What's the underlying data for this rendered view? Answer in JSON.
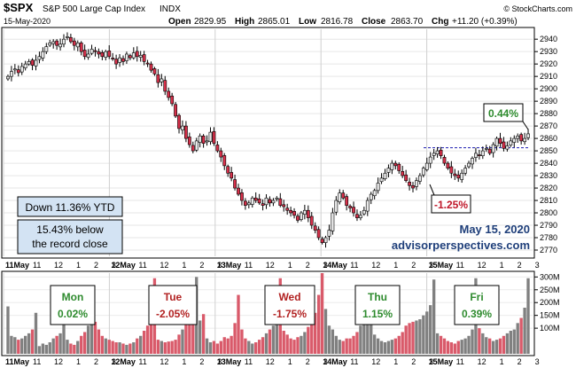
{
  "header": {
    "symbol": "$SPX",
    "name": "S&P 500 Large Cap Index",
    "exchange": "INDX",
    "date": "15-May-2020",
    "open_label": "Open",
    "open": "2829.95",
    "high_label": "High",
    "high": "2865.01",
    "low_label": "Low",
    "low": "2816.78",
    "close_label": "Close",
    "close": "2863.70",
    "chg_label": "Chg",
    "chg": "+11.20 (+0.39%)",
    "credit": "© StockCharts.com"
  },
  "annotations": {
    "ytd": "Down 11.36% YTD",
    "below_line1": "15.43% below",
    "below_line2": "the record close",
    "date_note": "May 15, 2020",
    "site": "advisorperspectives.com",
    "pct_up": "0.44%",
    "pct_down": "-1.25%"
  },
  "days": [
    {
      "name": "Mon",
      "value": "0.02%",
      "color": "#2e8b2e"
    },
    {
      "name": "Tue",
      "value": "-2.05%",
      "color": "#b22222"
    },
    {
      "name": "Wed",
      "value": "-1.75%",
      "color": "#b22222"
    },
    {
      "name": "Thu",
      "value": "1.15%",
      "color": "#2e8b2e"
    },
    {
      "name": "Fri",
      "value": "0.39%",
      "color": "#2e8b2e"
    }
  ],
  "colors": {
    "up": "#e8e8e8",
    "down": "#d6304a",
    "vol_up": "#808080",
    "vol_down": "#d95a6a",
    "frame": "#000000"
  },
  "chart_data": {
    "type": "candlestick",
    "price_axis": {
      "ticks": [
        2770,
        2780,
        2790,
        2800,
        2810,
        2820,
        2830,
        2840,
        2850,
        2860,
        2870,
        2880,
        2890,
        2900,
        2910,
        2920,
        2930,
        2940
      ],
      "range": [
        2765,
        2948
      ]
    },
    "volume_axis": {
      "ticks": [
        "100M",
        "150M",
        "200M",
        "250M",
        "300M"
      ],
      "values": [
        100,
        150,
        200,
        250,
        300
      ],
      "range": [
        0,
        315
      ]
    },
    "x_tick_labels": [
      "11May",
      "11",
      "12",
      "1",
      "2",
      "3",
      "12May",
      "11",
      "12",
      "1",
      "2",
      "3",
      "13May",
      "11",
      "12",
      "1",
      "2",
      "3",
      "14May",
      "11",
      "12",
      "1",
      "2",
      "3",
      "15May",
      "11",
      "12",
      "1",
      "2",
      "3"
    ],
    "reference_level": 2852.5,
    "close_path": [
      2910,
      2914,
      2916,
      2913,
      2918,
      2920,
      2922,
      2919,
      2923,
      2926,
      2930,
      2934,
      2937,
      2938,
      2935,
      2936,
      2940,
      2942,
      2938,
      2935,
      2937,
      2930,
      2926,
      2928,
      2932,
      2930,
      2928,
      2926,
      2930,
      2926,
      2924,
      2920,
      2925,
      2922,
      2928,
      2925,
      2929,
      2926,
      2927,
      2922,
      2920,
      2915,
      2912,
      2905,
      2908,
      2898,
      2893,
      2888,
      2878,
      2868,
      2870,
      2860,
      2855,
      2850,
      2858,
      2862,
      2856,
      2858,
      2865,
      2856,
      2850,
      2845,
      2838,
      2832,
      2828,
      2820,
      2815,
      2810,
      2806,
      2808,
      2812,
      2810,
      2808,
      2806,
      2812,
      2808,
      2810,
      2812,
      2806,
      2805,
      2802,
      2800,
      2798,
      2794,
      2800,
      2802,
      2796,
      2790,
      2786,
      2780,
      2776,
      2780,
      2786,
      2800,
      2810,
      2816,
      2812,
      2806,
      2804,
      2800,
      2796,
      2798,
      2802,
      2810,
      2815,
      2818,
      2824,
      2828,
      2832,
      2836,
      2840,
      2838,
      2834,
      2830,
      2826,
      2822,
      2820,
      2826,
      2830,
      2836,
      2840,
      2845,
      2848,
      2850,
      2846,
      2840,
      2836,
      2832,
      2830,
      2828,
      2832,
      2836,
      2840,
      2844,
      2848,
      2846,
      2850,
      2852,
      2848,
      2855,
      2860,
      2856,
      2852,
      2854,
      2858,
      2860,
      2862,
      2858,
      2860,
      2863.7
    ],
    "volume": [
      185,
      70,
      65,
      55,
      60,
      70,
      80,
      95,
      160,
      30,
      40,
      35,
      45,
      60,
      70,
      80,
      210,
      55,
      40,
      35,
      50,
      70,
      85,
      110,
      205,
      125,
      95,
      70,
      60,
      55,
      50,
      45,
      45,
      40,
      35,
      40,
      45,
      60,
      70,
      90,
      110,
      150,
      295,
      55,
      50,
      45,
      48,
      50,
      55,
      75,
      95,
      115,
      130,
      180,
      300,
      130,
      155,
      60,
      45,
      50,
      40,
      50,
      65,
      60,
      70,
      120,
      230,
      95,
      60,
      50,
      40,
      45,
      55,
      65,
      80,
      95,
      110,
      140,
      295,
      90,
      75,
      60,
      55,
      65,
      70,
      85,
      105,
      125,
      160,
      230,
      315,
      175,
      110,
      95,
      70,
      55,
      50,
      60,
      60,
      70,
      85,
      110,
      145,
      200,
      180,
      75,
      60,
      50,
      45,
      50,
      55,
      60,
      70,
      85,
      110,
      120,
      125,
      130,
      135,
      150,
      165,
      190,
      290,
      80,
      70,
      60,
      50,
      45,
      40,
      50,
      55,
      60,
      70,
      95,
      295,
      100,
      80,
      65,
      60,
      50,
      55,
      60,
      70,
      80,
      90,
      95,
      120,
      140,
      180,
      295
    ]
  }
}
